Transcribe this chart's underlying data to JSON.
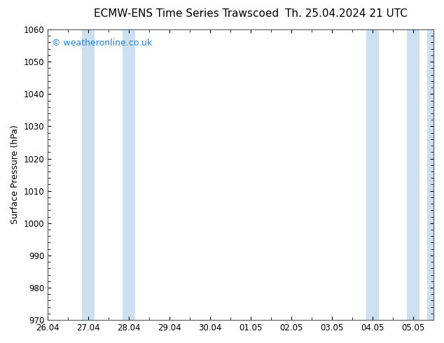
{
  "title_left": "ECMW-ENS Time Series Trawscoed",
  "title_right": "Th. 25.04.2024 21 UTC",
  "ylabel": "Surface Pressure (hPa)",
  "ylim": [
    970,
    1060
  ],
  "yticks": [
    970,
    980,
    990,
    1000,
    1010,
    1020,
    1030,
    1040,
    1050,
    1060
  ],
  "xlabel_dates": [
    "26.04",
    "27.04",
    "28.04",
    "29.04",
    "30.04",
    "01.05",
    "02.05",
    "03.05",
    "04.05",
    "05.05"
  ],
  "x_positions": [
    0,
    1,
    2,
    3,
    4,
    5,
    6,
    7,
    8,
    9
  ],
  "xlim": [
    0,
    9.5
  ],
  "shaded_bands": [
    {
      "x_start": 0.85,
      "x_end": 1.15,
      "color": "#cce0f0"
    },
    {
      "x_start": 1.85,
      "x_end": 2.15,
      "color": "#cce0f0"
    },
    {
      "x_start": 7.85,
      "x_end": 8.15,
      "color": "#cce0f0"
    },
    {
      "x_start": 8.85,
      "x_end": 9.15,
      "color": "#cce0f0"
    },
    {
      "x_start": 9.35,
      "x_end": 9.5,
      "color": "#cce0f0"
    }
  ],
  "background_color": "#ffffff",
  "plot_bg_color": "#ffffff",
  "watermark_text": "© weatheronline.co.uk",
  "watermark_color": "#1e7fd4",
  "watermark_fontsize": 9,
  "title_fontsize": 11,
  "tick_fontsize": 8.5,
  "ylabel_fontsize": 9,
  "border_color": "#555555"
}
